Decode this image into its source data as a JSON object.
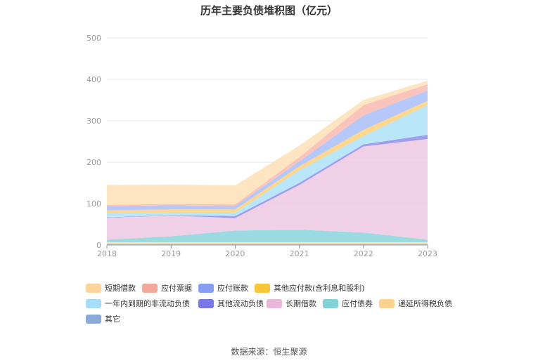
{
  "chart_data": {
    "type": "area",
    "stacked": true,
    "title": "历年主要负债堆积图（亿元）",
    "x": [
      "2018",
      "2019",
      "2020",
      "2021",
      "2022",
      "2023"
    ],
    "y_ticks": [
      "0",
      "100",
      "200",
      "300",
      "400",
      "500"
    ],
    "ylim": [
      0,
      500
    ],
    "grid": true,
    "legend_position": "bottom",
    "series": [
      {
        "name": "其它",
        "color": "#8fb0dc",
        "values": [
          2,
          2,
          2,
          2,
          2,
          2
        ]
      },
      {
        "name": "递延所得税负债",
        "color": "#fcd79b",
        "values": [
          5,
          5,
          5,
          5,
          5,
          5
        ]
      },
      {
        "name": "应付债券",
        "color": "#89d4d8",
        "values": [
          6,
          14,
          28,
          30,
          23,
          6
        ]
      },
      {
        "name": "长期借款",
        "color": "#ecc8e2",
        "values": [
          53,
          50,
          30,
          108,
          208,
          243
        ]
      },
      {
        "name": "其他流动负债",
        "color": "#8f8ee8",
        "values": [
          1,
          1,
          5,
          5,
          5,
          10
        ]
      },
      {
        "name": "一年内到期的非流动负债",
        "color": "#aee2f9",
        "values": [
          9,
          6,
          8,
          30,
          20,
          72
        ]
      },
      {
        "name": "其他应付款(含利息和股利)",
        "color": "#fdd07a",
        "values": [
          8,
          8,
          8,
          10,
          15,
          10
        ]
      },
      {
        "name": "应付账款",
        "color": "#a9bdf8",
        "values": [
          10,
          10,
          8,
          12,
          35,
          25
        ]
      },
      {
        "name": "应付票据",
        "color": "#f9b8b0",
        "values": [
          3,
          3,
          4,
          10,
          25,
          15
        ]
      },
      {
        "name": "短期借款",
        "color": "#fde1b6",
        "values": [
          48,
          47,
          46,
          28,
          12,
          9
        ]
      }
    ]
  },
  "legend_order": [
    {
      "name": "短期借款",
      "color": "#fdd59a"
    },
    {
      "name": "应付票据",
      "color": "#f4a89c"
    },
    {
      "name": "应付账款",
      "color": "#879df3"
    },
    {
      "name": "其他应付款(含利息和股利)",
      "color": "#fbc53a"
    },
    {
      "name": "一年内到期的非流动负债",
      "color": "#a6ddf8"
    },
    {
      "name": "其他流动负债",
      "color": "#7a78e8"
    },
    {
      "name": "长期借款",
      "color": "#e8b7da"
    },
    {
      "name": "应付债券",
      "color": "#80d2d6"
    },
    {
      "name": "递延所得税负债",
      "color": "#fbd38f"
    },
    {
      "name": "其它",
      "color": "#8aaad8"
    }
  ],
  "source": "数据来源：恒生聚源"
}
